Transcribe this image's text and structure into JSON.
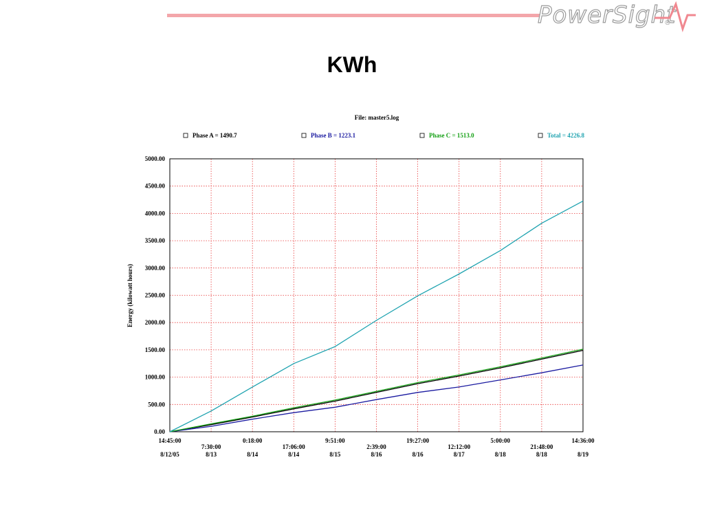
{
  "header": {
    "brand": "PowerSight",
    "brand_mark": "®",
    "title": "KWh",
    "accent_color": "#f3a6aa"
  },
  "chart_data": {
    "type": "line",
    "file_label": "File: master5.log",
    "ylabel": "Energy (kilowatt hours)",
    "xlabel": "",
    "ylim": [
      0,
      5000
    ],
    "y_ticks": [
      "0.00",
      "500.00",
      "1000.00",
      "1500.00",
      "2000.00",
      "2500.00",
      "3000.00",
      "3500.00",
      "4000.00",
      "4500.00",
      "5000.00"
    ],
    "x_ticks": [
      {
        "time": "14:45:00",
        "date": "8/12/05"
      },
      {
        "time": "7:30:00",
        "date": "8/13"
      },
      {
        "time": "0:18:00",
        "date": "8/14"
      },
      {
        "time": "17:06:00",
        "date": "8/14"
      },
      {
        "time": "9:51:00",
        "date": "8/15"
      },
      {
        "time": "2:39:00",
        "date": "8/16"
      },
      {
        "time": "19:27:00",
        "date": "8/16"
      },
      {
        "time": "12:12:00",
        "date": "8/17"
      },
      {
        "time": "5:00:00",
        "date": "8/18"
      },
      {
        "time": "21:48:00",
        "date": "8/18"
      },
      {
        "time": "14:36:00",
        "date": "8/19"
      }
    ],
    "grid": true,
    "grid_color": "#e83a3a",
    "legend_position": "top",
    "series": [
      {
        "name": "Phase A = 1490.7",
        "color": "#000000",
        "values": [
          0,
          130,
          270,
          420,
          560,
          720,
          880,
          1020,
          1170,
          1330,
          1490.7
        ]
      },
      {
        "name": "Phase B = 1223.1",
        "color": "#1a1aa0",
        "values": [
          0,
          100,
          230,
          350,
          450,
          590,
          720,
          820,
          950,
          1080,
          1223.1
        ]
      },
      {
        "name": "Phase C = 1513.0",
        "color": "#15a015",
        "values": [
          0,
          145,
          285,
          440,
          580,
          740,
          900,
          1040,
          1190,
          1350,
          1513.0
        ]
      },
      {
        "name": "Total = 4226.8",
        "color": "#1fa3b0",
        "values": [
          0,
          380,
          820,
          1250,
          1560,
          2040,
          2490,
          2890,
          3320,
          3820,
          4226.8
        ]
      }
    ]
  }
}
